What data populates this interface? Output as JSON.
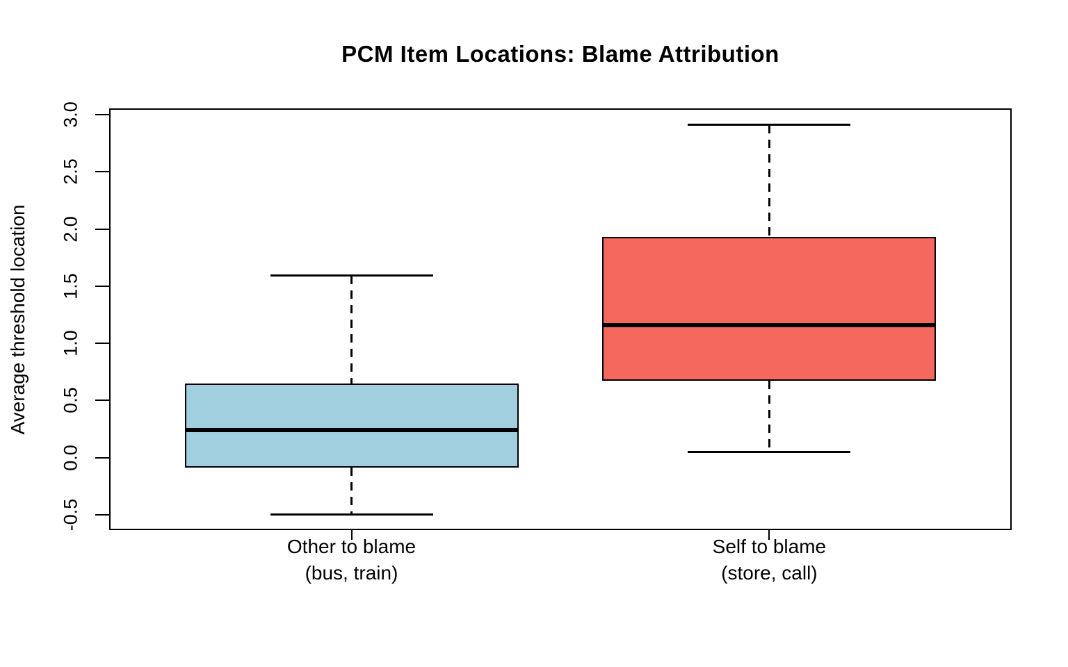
{
  "chart_data": {
    "type": "boxplot",
    "title": "PCM Item Locations: Blame Attribution",
    "ylabel": "Average threshold location",
    "xlabel": "",
    "ylim": [
      -0.635,
      3.055
    ],
    "yticks": [
      3.0,
      2.5,
      2.0,
      1.5,
      1.0,
      0.5,
      0.0,
      -0.5
    ],
    "grid": false,
    "legend_position": "none",
    "orientation": "vertical",
    "axis_color": "#000000",
    "background_color": "#ffffff",
    "categories": [
      {
        "label": "Other to blame",
        "sublabel": "(bus, train)"
      },
      {
        "label": "Self to blame",
        "sublabel": "(store, call)"
      }
    ],
    "series": [
      {
        "name": "Other to blame (bus, train)",
        "fill": "#A2CFE0",
        "whisker_low": -0.5,
        "q1": -0.09,
        "median": 0.24,
        "q3": 0.65,
        "whisker_high": 1.59
      },
      {
        "name": "Self to blame (store, call)",
        "fill": "#F5685E",
        "whisker_low": 0.05,
        "q1": 0.67,
        "median": 1.16,
        "q3": 1.93,
        "whisker_high": 2.91
      }
    ]
  }
}
